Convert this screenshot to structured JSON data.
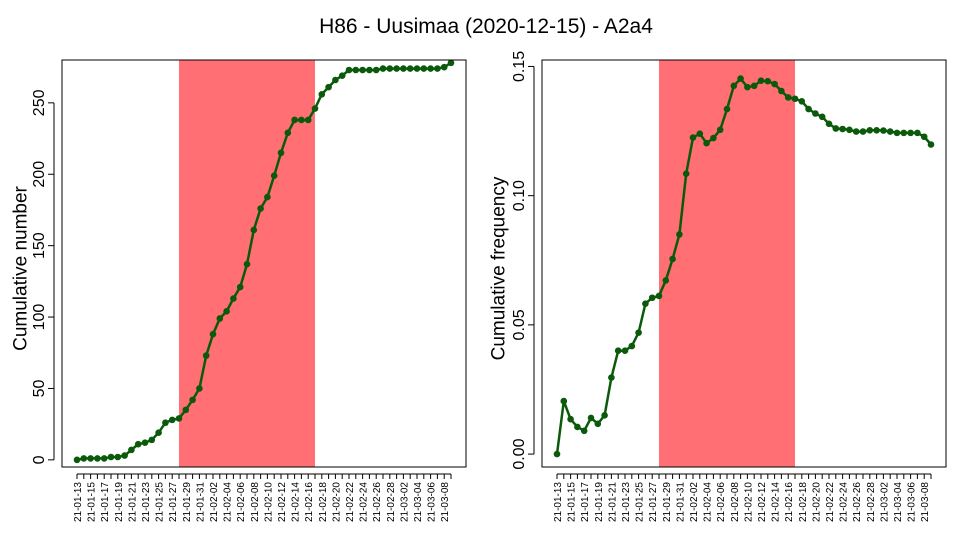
{
  "figure_title": "H86 - Uusimaa (2020-12-15) - A2a4",
  "colors": {
    "series": "#0b5a0b",
    "band": "#ff6f73"
  },
  "chart_data": [
    {
      "type": "line",
      "ylabel": "Cumulative number",
      "ylim": [
        -5,
        280
      ],
      "yticks": [
        0,
        50,
        100,
        150,
        200,
        250
      ],
      "yticklabels": [
        "0",
        "50",
        "100",
        "150",
        "200",
        "250"
      ],
      "x": [
        "21-01-13",
        "21-01-14",
        "21-01-15",
        "21-01-16",
        "21-01-17",
        "21-01-18",
        "21-01-19",
        "21-01-20",
        "21-01-21",
        "21-01-22",
        "21-01-23",
        "21-01-24",
        "21-01-25",
        "21-01-26",
        "21-01-27",
        "21-01-28",
        "21-01-29",
        "21-01-30",
        "21-01-31",
        "21-02-01",
        "21-02-02",
        "21-02-03",
        "21-02-04",
        "21-02-05",
        "21-02-06",
        "21-02-07",
        "21-02-08",
        "21-02-09",
        "21-02-10",
        "21-02-11",
        "21-02-12",
        "21-02-13",
        "21-02-14",
        "21-02-15",
        "21-02-16",
        "21-02-17",
        "21-02-18",
        "21-02-19",
        "21-02-20",
        "21-02-21",
        "21-02-22",
        "21-02-23",
        "21-02-24",
        "21-02-25",
        "21-02-26",
        "21-02-27",
        "21-02-28",
        "21-03-01",
        "21-03-02",
        "21-03-03",
        "21-03-04",
        "21-03-05",
        "21-03-06",
        "21-03-07",
        "21-03-08",
        "21-03-09"
      ],
      "xticklabels": [
        "21-01-13",
        "21-01-15",
        "21-01-17",
        "21-01-19",
        "21-01-21",
        "21-01-23",
        "21-01-25",
        "21-01-27",
        "21-01-29",
        "21-01-31",
        "21-02-02",
        "21-02-04",
        "21-02-06",
        "21-02-08",
        "21-02-10",
        "21-02-12",
        "21-02-14",
        "21-02-16",
        "21-02-18",
        "21-02-20",
        "21-02-22",
        "21-02-24",
        "21-02-26",
        "21-02-28",
        "21-03-02",
        "21-03-04",
        "21-03-06",
        "21-03-08"
      ],
      "series": [
        {
          "values": [
            0,
            1,
            1,
            1,
            1,
            2,
            2,
            3,
            7,
            11,
            12,
            14,
            19,
            26,
            28,
            29,
            35,
            42,
            50,
            73,
            88,
            99,
            104,
            113,
            121,
            137,
            161,
            176,
            184,
            199,
            215,
            229,
            238,
            238,
            238,
            246,
            256,
            261,
            266,
            269,
            273,
            273,
            273,
            273,
            273,
            274,
            274,
            274,
            274,
            274,
            274,
            274,
            274,
            274,
            275,
            278
          ]
        }
      ],
      "band": {
        "from": "21-01-28",
        "to": "21-02-17"
      }
    },
    {
      "type": "line",
      "ylabel": "Cumulative frequency",
      "ylim": [
        -0.005,
        0.1525
      ],
      "yticks": [
        0.0,
        0.05,
        0.1,
        0.15
      ],
      "yticklabels": [
        "0.00",
        "0.05",
        "0.10",
        "0.15"
      ],
      "x": [
        "21-01-13",
        "21-01-14",
        "21-01-15",
        "21-01-16",
        "21-01-17",
        "21-01-18",
        "21-01-19",
        "21-01-20",
        "21-01-21",
        "21-01-22",
        "21-01-23",
        "21-01-24",
        "21-01-25",
        "21-01-26",
        "21-01-27",
        "21-01-28",
        "21-01-29",
        "21-01-30",
        "21-01-31",
        "21-02-01",
        "21-02-02",
        "21-02-03",
        "21-02-04",
        "21-02-05",
        "21-02-06",
        "21-02-07",
        "21-02-08",
        "21-02-09",
        "21-02-10",
        "21-02-11",
        "21-02-12",
        "21-02-13",
        "21-02-14",
        "21-02-15",
        "21-02-16",
        "21-02-17",
        "21-02-18",
        "21-02-19",
        "21-02-20",
        "21-02-21",
        "21-02-22",
        "21-02-23",
        "21-02-24",
        "21-02-25",
        "21-02-26",
        "21-02-27",
        "21-02-28",
        "21-03-01",
        "21-03-02",
        "21-03-03",
        "21-03-04",
        "21-03-05",
        "21-03-06",
        "21-03-07",
        "21-03-08",
        "21-03-09"
      ],
      "xticklabels": [
        "21-01-13",
        "21-01-15",
        "21-01-17",
        "21-01-19",
        "21-01-21",
        "21-01-23",
        "21-01-25",
        "21-01-27",
        "21-01-29",
        "21-01-31",
        "21-02-02",
        "21-02-04",
        "21-02-06",
        "21-02-08",
        "21-02-10",
        "21-02-12",
        "21-02-14",
        "21-02-16",
        "21-02-18",
        "21-02-20",
        "21-02-22",
        "21-02-24",
        "21-02-26",
        "21-02-28",
        "21-03-02",
        "21-03-04",
        "21-03-06",
        "21-03-08"
      ],
      "series": [
        {
          "values": [
            0.0,
            0.0205,
            0.0135,
            0.0105,
            0.009,
            0.014,
            0.0117,
            0.015,
            0.0296,
            0.04,
            0.04,
            0.0418,
            0.047,
            0.0582,
            0.0605,
            0.0612,
            0.0672,
            0.0755,
            0.085,
            0.1085,
            0.1225,
            0.124,
            0.1203,
            0.1223,
            0.1255,
            0.1335,
            0.1425,
            0.1453,
            0.142,
            0.1425,
            0.1445,
            0.1443,
            0.1432,
            0.1405,
            0.138,
            0.1375,
            0.1365,
            0.1335,
            0.1318,
            0.1305,
            0.1278,
            0.126,
            0.1258,
            0.1255,
            0.1248,
            0.1248,
            0.1253,
            0.1253,
            0.1252,
            0.1248,
            0.1243,
            0.1243,
            0.1243,
            0.1243,
            0.1228,
            0.1198
          ]
        }
      ],
      "band": {
        "from": "21-01-28",
        "to": "21-02-17"
      }
    }
  ]
}
